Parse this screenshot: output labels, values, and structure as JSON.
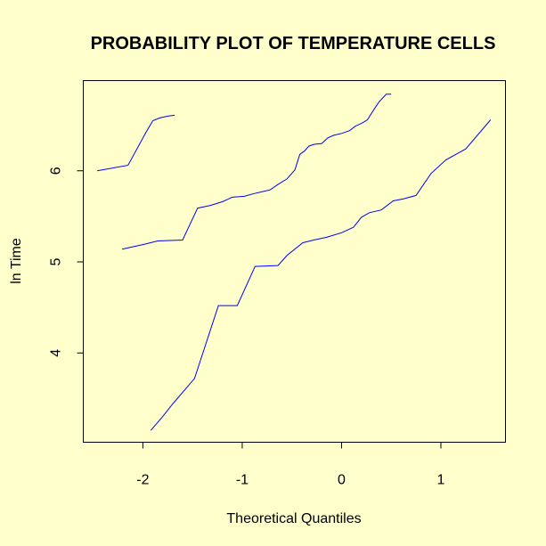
{
  "chart_data": {
    "type": "line",
    "title": "PROBABILITY PLOT OF TEMPERATURE CELLS",
    "xlabel": "Theoretical Quantiles",
    "ylabel": "ln Time",
    "xlim": [
      -2.6,
      1.65
    ],
    "ylim": [
      3.02,
      6.99
    ],
    "xticks": [
      -2,
      -1,
      0,
      1
    ],
    "yticks": [
      4,
      5,
      6
    ],
    "grid": false,
    "legend": "none",
    "series_color": "#0000ff",
    "series": [
      {
        "x": [
          -2.46,
          -2.15,
          -1.97,
          -1.9,
          -1.83,
          -1.75,
          -1.68
        ],
        "y": [
          6.0,
          6.06,
          6.42,
          6.55,
          6.58,
          6.6,
          6.61
        ]
      },
      {
        "x": [
          -2.21,
          -2.0,
          -1.85,
          -1.6,
          -1.45,
          -1.32,
          -1.2,
          -1.1,
          -0.98,
          -0.88,
          -0.8,
          -0.72,
          -0.64,
          -0.55,
          -0.47,
          -0.42,
          -0.37,
          -0.33,
          -0.28,
          -0.2,
          -0.14,
          -0.08,
          0.0,
          0.08,
          0.14,
          0.2,
          0.26,
          0.33,
          0.38,
          0.45,
          0.5
        ],
        "y": [
          5.14,
          5.19,
          5.23,
          5.24,
          5.59,
          5.62,
          5.66,
          5.71,
          5.72,
          5.75,
          5.77,
          5.79,
          5.85,
          5.91,
          6.01,
          6.18,
          6.22,
          6.27,
          6.29,
          6.3,
          6.36,
          6.39,
          6.41,
          6.44,
          6.49,
          6.52,
          6.56,
          6.68,
          6.76,
          6.84,
          6.84
        ]
      },
      {
        "x": [
          -1.92,
          -1.81,
          -1.7,
          -1.48,
          -1.24,
          -1.05,
          -0.87,
          -0.64,
          -0.55,
          -0.39,
          -0.28,
          -0.15,
          0.0,
          0.12,
          0.2,
          0.28,
          0.4,
          0.52,
          0.62,
          0.75,
          0.9,
          1.05,
          1.25,
          1.5
        ],
        "y": [
          3.15,
          3.29,
          3.44,
          3.72,
          4.52,
          4.52,
          4.95,
          4.96,
          5.07,
          5.21,
          5.24,
          5.27,
          5.32,
          5.38,
          5.49,
          5.54,
          5.57,
          5.67,
          5.69,
          5.73,
          5.97,
          6.12,
          6.24,
          6.56
        ]
      }
    ]
  }
}
